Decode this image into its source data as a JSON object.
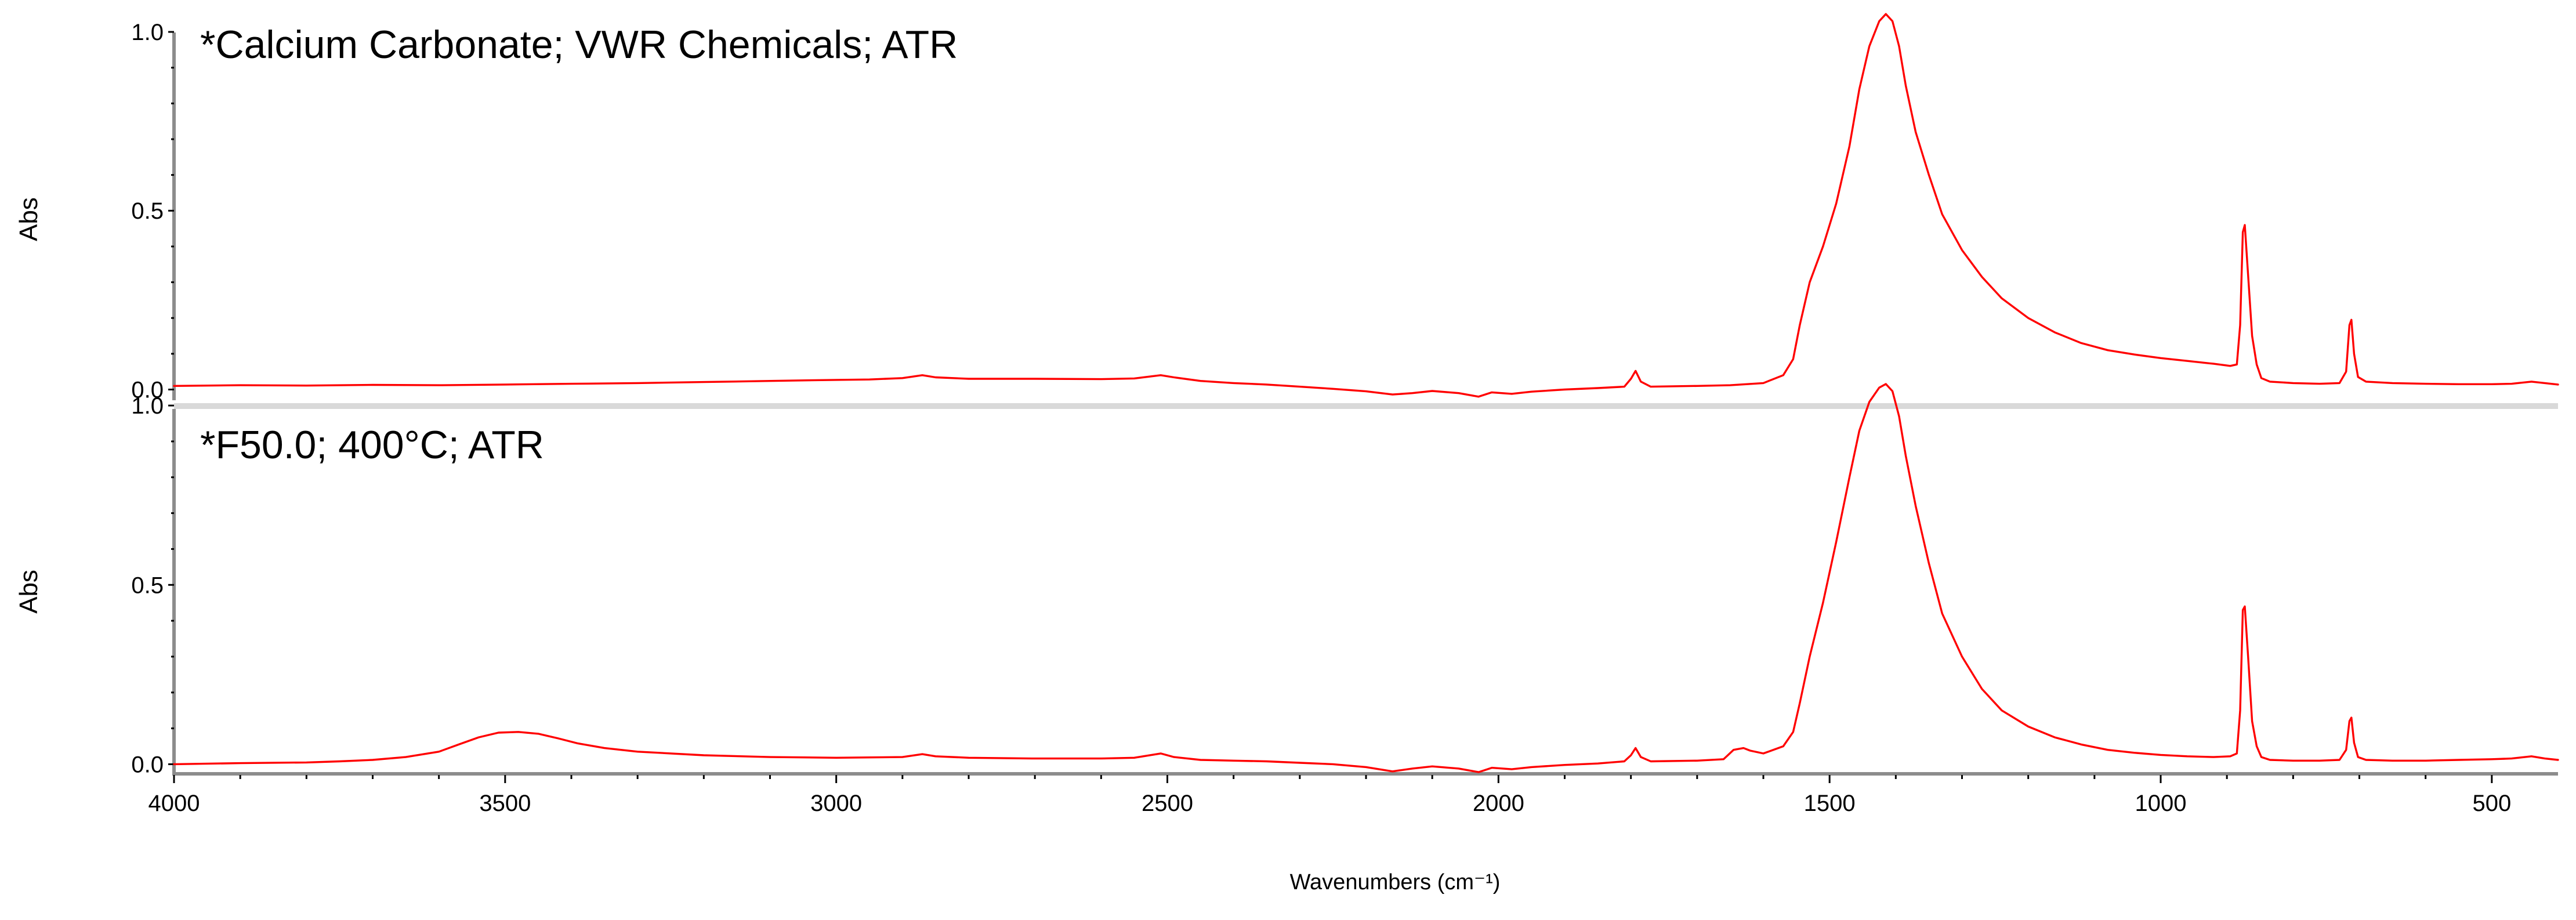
{
  "chart_data": [
    {
      "type": "line",
      "title": "*Calcium Carbonate; VWR Chemicals; ATR",
      "ylabel": "Abs",
      "xlabel": "",
      "xlim": [
        4000,
        400
      ],
      "x_reversed": true,
      "ylim": [
        -0.03,
        1.06
      ],
      "yticks": [
        0.0,
        0.5,
        1.0
      ],
      "ytick_labels": [
        "0.0",
        "0.5",
        "1.0"
      ],
      "grid": false,
      "series": [
        {
          "color": "#ff0000",
          "points": [
            [
              4000,
              0.01
            ],
            [
              3900,
              0.012
            ],
            [
              3800,
              0.011
            ],
            [
              3700,
              0.013
            ],
            [
              3600,
              0.012
            ],
            [
              3500,
              0.014
            ],
            [
              3400,
              0.016
            ],
            [
              3300,
              0.018
            ],
            [
              3200,
              0.021
            ],
            [
              3100,
              0.024
            ],
            [
              3000,
              0.027
            ],
            [
              2950,
              0.028
            ],
            [
              2900,
              0.032
            ],
            [
              2870,
              0.04
            ],
            [
              2850,
              0.034
            ],
            [
              2800,
              0.03
            ],
            [
              2700,
              0.03
            ],
            [
              2600,
              0.029
            ],
            [
              2550,
              0.031
            ],
            [
              2510,
              0.04
            ],
            [
              2490,
              0.034
            ],
            [
              2450,
              0.024
            ],
            [
              2400,
              0.018
            ],
            [
              2350,
              0.014
            ],
            [
              2300,
              0.008
            ],
            [
              2250,
              0.002
            ],
            [
              2200,
              -0.005
            ],
            [
              2160,
              -0.014
            ],
            [
              2130,
              -0.01
            ],
            [
              2100,
              -0.004
            ],
            [
              2060,
              -0.01
            ],
            [
              2030,
              -0.02
            ],
            [
              2010,
              -0.008
            ],
            [
              1980,
              -0.012
            ],
            [
              1950,
              -0.006
            ],
            [
              1900,
              0.0
            ],
            [
              1850,
              0.004
            ],
            [
              1810,
              0.008
            ],
            [
              1800,
              0.03
            ],
            [
              1793,
              0.052
            ],
            [
              1785,
              0.022
            ],
            [
              1770,
              0.008
            ],
            [
              1700,
              0.01
            ],
            [
              1650,
              0.012
            ],
            [
              1600,
              0.018
            ],
            [
              1570,
              0.04
            ],
            [
              1555,
              0.085
            ],
            [
              1545,
              0.18
            ],
            [
              1530,
              0.3
            ],
            [
              1510,
              0.4
            ],
            [
              1490,
              0.52
            ],
            [
              1470,
              0.68
            ],
            [
              1455,
              0.84
            ],
            [
              1440,
              0.96
            ],
            [
              1425,
              1.03
            ],
            [
              1415,
              1.05
            ],
            [
              1405,
              1.03
            ],
            [
              1395,
              0.96
            ],
            [
              1385,
              0.85
            ],
            [
              1370,
              0.72
            ],
            [
              1350,
              0.6
            ],
            [
              1330,
              0.49
            ],
            [
              1300,
              0.39
            ],
            [
              1270,
              0.315
            ],
            [
              1240,
              0.255
            ],
            [
              1200,
              0.2
            ],
            [
              1160,
              0.16
            ],
            [
              1120,
              0.13
            ],
            [
              1080,
              0.11
            ],
            [
              1040,
              0.098
            ],
            [
              1000,
              0.088
            ],
            [
              960,
              0.08
            ],
            [
              920,
              0.072
            ],
            [
              895,
              0.066
            ],
            [
              885,
              0.07
            ],
            [
              880,
              0.18
            ],
            [
              876,
              0.44
            ],
            [
              873,
              0.46
            ],
            [
              868,
              0.32
            ],
            [
              862,
              0.15
            ],
            [
              855,
              0.07
            ],
            [
              848,
              0.032
            ],
            [
              835,
              0.022
            ],
            [
              800,
              0.018
            ],
            [
              760,
              0.016
            ],
            [
              730,
              0.018
            ],
            [
              720,
              0.05
            ],
            [
              715,
              0.18
            ],
            [
              712,
              0.195
            ],
            [
              708,
              0.1
            ],
            [
              702,
              0.035
            ],
            [
              690,
              0.022
            ],
            [
              650,
              0.018
            ],
            [
              600,
              0.016
            ],
            [
              550,
              0.015
            ],
            [
              500,
              0.015
            ],
            [
              470,
              0.016
            ],
            [
              440,
              0.022
            ],
            [
              420,
              0.018
            ],
            [
              400,
              0.014
            ]
          ]
        }
      ]
    },
    {
      "type": "line",
      "title": "*F50.0; 400°C; ATR",
      "ylabel": "Abs",
      "xlabel": "Wavenumbers (cm⁻¹)",
      "xlim": [
        4000,
        400
      ],
      "x_reversed": true,
      "ylim": [
        -0.03,
        1.06
      ],
      "yticks": [
        0.0,
        0.5,
        1.0
      ],
      "ytick_labels": [
        "0.0",
        "0.5",
        "1.0"
      ],
      "xticks": [
        4000,
        3500,
        3000,
        2500,
        2000,
        1500,
        1000,
        500
      ],
      "xtick_labels": [
        "4000",
        "3500",
        "3000",
        "2500",
        "2000",
        "1500",
        "1000",
        "500"
      ],
      "grid": false,
      "series": [
        {
          "color": "#ff0000",
          "points": [
            [
              4000,
              0.0
            ],
            [
              3900,
              0.003
            ],
            [
              3800,
              0.005
            ],
            [
              3750,
              0.008
            ],
            [
              3700,
              0.012
            ],
            [
              3650,
              0.02
            ],
            [
              3600,
              0.035
            ],
            [
              3570,
              0.055
            ],
            [
              3540,
              0.075
            ],
            [
              3510,
              0.088
            ],
            [
              3480,
              0.09
            ],
            [
              3450,
              0.085
            ],
            [
              3420,
              0.072
            ],
            [
              3390,
              0.058
            ],
            [
              3350,
              0.045
            ],
            [
              3300,
              0.035
            ],
            [
              3200,
              0.025
            ],
            [
              3100,
              0.02
            ],
            [
              3000,
              0.018
            ],
            [
              2900,
              0.02
            ],
            [
              2870,
              0.028
            ],
            [
              2850,
              0.022
            ],
            [
              2800,
              0.018
            ],
            [
              2700,
              0.016
            ],
            [
              2600,
              0.016
            ],
            [
              2550,
              0.018
            ],
            [
              2510,
              0.03
            ],
            [
              2490,
              0.02
            ],
            [
              2450,
              0.012
            ],
            [
              2400,
              0.01
            ],
            [
              2350,
              0.008
            ],
            [
              2300,
              0.004
            ],
            [
              2250,
              0.0
            ],
            [
              2200,
              -0.008
            ],
            [
              2160,
              -0.02
            ],
            [
              2130,
              -0.012
            ],
            [
              2100,
              -0.006
            ],
            [
              2060,
              -0.012
            ],
            [
              2030,
              -0.022
            ],
            [
              2010,
              -0.01
            ],
            [
              1980,
              -0.014
            ],
            [
              1950,
              -0.008
            ],
            [
              1900,
              -0.002
            ],
            [
              1850,
              0.002
            ],
            [
              1810,
              0.008
            ],
            [
              1800,
              0.025
            ],
            [
              1793,
              0.045
            ],
            [
              1785,
              0.02
            ],
            [
              1770,
              0.008
            ],
            [
              1700,
              0.01
            ],
            [
              1660,
              0.014
            ],
            [
              1645,
              0.04
            ],
            [
              1630,
              0.045
            ],
            [
              1620,
              0.038
            ],
            [
              1600,
              0.03
            ],
            [
              1570,
              0.05
            ],
            [
              1555,
              0.09
            ],
            [
              1545,
              0.17
            ],
            [
              1530,
              0.3
            ],
            [
              1510,
              0.45
            ],
            [
              1490,
              0.62
            ],
            [
              1470,
              0.8
            ],
            [
              1455,
              0.93
            ],
            [
              1440,
              1.01
            ],
            [
              1425,
              1.05
            ],
            [
              1415,
              1.06
            ],
            [
              1405,
              1.04
            ],
            [
              1395,
              0.97
            ],
            [
              1385,
              0.86
            ],
            [
              1370,
              0.72
            ],
            [
              1350,
              0.56
            ],
            [
              1330,
              0.42
            ],
            [
              1300,
              0.3
            ],
            [
              1270,
              0.21
            ],
            [
              1240,
              0.15
            ],
            [
              1200,
              0.105
            ],
            [
              1160,
              0.075
            ],
            [
              1120,
              0.055
            ],
            [
              1080,
              0.04
            ],
            [
              1040,
              0.032
            ],
            [
              1000,
              0.026
            ],
            [
              960,
              0.022
            ],
            [
              920,
              0.02
            ],
            [
              895,
              0.022
            ],
            [
              885,
              0.03
            ],
            [
              880,
              0.15
            ],
            [
              876,
              0.43
            ],
            [
              873,
              0.44
            ],
            [
              868,
              0.3
            ],
            [
              862,
              0.12
            ],
            [
              855,
              0.05
            ],
            [
              848,
              0.02
            ],
            [
              835,
              0.012
            ],
            [
              800,
              0.01
            ],
            [
              760,
              0.01
            ],
            [
              730,
              0.012
            ],
            [
              720,
              0.04
            ],
            [
              715,
              0.12
            ],
            [
              712,
              0.13
            ],
            [
              708,
              0.06
            ],
            [
              702,
              0.02
            ],
            [
              690,
              0.012
            ],
            [
              650,
              0.01
            ],
            [
              600,
              0.01
            ],
            [
              550,
              0.012
            ],
            [
              500,
              0.014
            ],
            [
              470,
              0.016
            ],
            [
              440,
              0.022
            ],
            [
              420,
              0.016
            ],
            [
              400,
              0.012
            ]
          ]
        }
      ]
    }
  ]
}
